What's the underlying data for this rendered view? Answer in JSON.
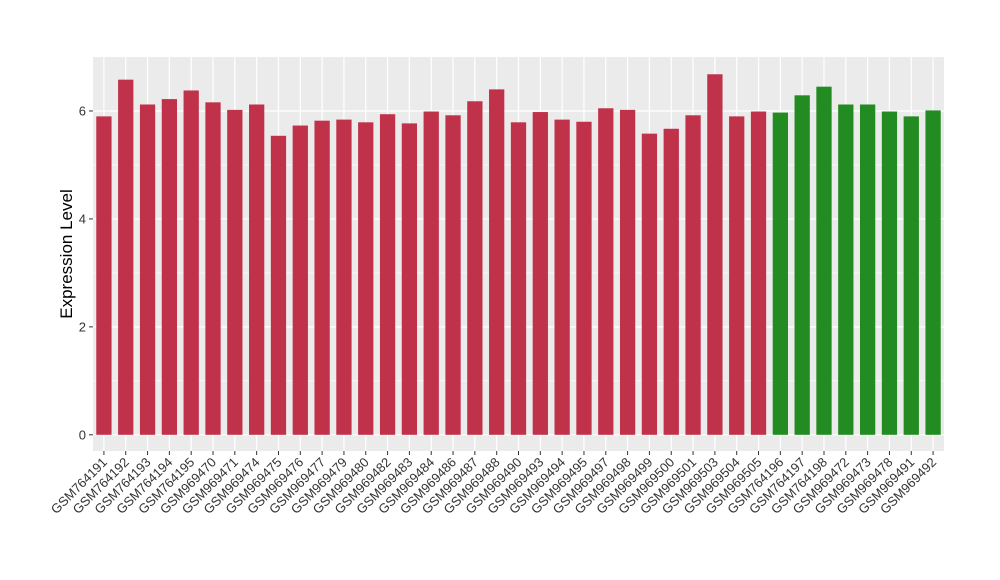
{
  "chart_data": {
    "type": "bar",
    "title": "",
    "xlabel": "",
    "ylabel": "Expression Level",
    "ylim": [
      -0.3,
      7.0
    ],
    "yticks": [
      0,
      2,
      4,
      6
    ],
    "grid": true,
    "legend": "none",
    "colors": {
      "red": "#C0314A",
      "green": "#228B22",
      "panel": "#EBEBEB",
      "gridline": "#FFFFFF"
    },
    "categories": [
      "GSM764191",
      "GSM764192",
      "GSM764193",
      "GSM764194",
      "GSM764195",
      "GSM969470",
      "GSM969471",
      "GSM969474",
      "GSM969475",
      "GSM969476",
      "GSM969477",
      "GSM969479",
      "GSM969480",
      "GSM969482",
      "GSM969483",
      "GSM969484",
      "GSM969486",
      "GSM969487",
      "GSM969488",
      "GSM969490",
      "GSM969493",
      "GSM969494",
      "GSM969495",
      "GSM969497",
      "GSM969498",
      "GSM969499",
      "GSM969500",
      "GSM969501",
      "GSM969503",
      "GSM969504",
      "GSM969505",
      "GSM764196",
      "GSM764197",
      "GSM764198",
      "GSM969472",
      "GSM969473",
      "GSM969478",
      "GSM969491",
      "GSM969492"
    ],
    "values": [
      5.9,
      6.58,
      6.12,
      6.22,
      6.38,
      6.16,
      6.02,
      6.12,
      5.54,
      5.73,
      5.82,
      5.84,
      5.79,
      5.94,
      5.77,
      5.99,
      5.92,
      6.18,
      6.4,
      5.79,
      5.98,
      5.84,
      5.8,
      6.05,
      6.02,
      5.58,
      5.67,
      5.92,
      6.68,
      5.9,
      5.99,
      5.97,
      6.29,
      6.45,
      6.12,
      6.12,
      5.99,
      5.9,
      6.01
    ],
    "groups": [
      "red",
      "red",
      "red",
      "red",
      "red",
      "red",
      "red",
      "red",
      "red",
      "red",
      "red",
      "red",
      "red",
      "red",
      "red",
      "red",
      "red",
      "red",
      "red",
      "red",
      "red",
      "red",
      "red",
      "red",
      "red",
      "red",
      "red",
      "red",
      "red",
      "red",
      "red",
      "green",
      "green",
      "green",
      "green",
      "green",
      "green",
      "green",
      "green"
    ]
  }
}
